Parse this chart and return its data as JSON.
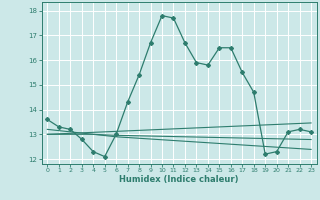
{
  "xlabel": "Humidex (Indice chaleur)",
  "background_color": "#cce8e8",
  "grid_color": "#ffffff",
  "line_color": "#2e7d6e",
  "xlim": [
    -0.5,
    23.5
  ],
  "ylim": [
    11.8,
    18.35
  ],
  "yticks": [
    12,
    13,
    14,
    15,
    16,
    17,
    18
  ],
  "xticks": [
    0,
    1,
    2,
    3,
    4,
    5,
    6,
    7,
    8,
    9,
    10,
    11,
    12,
    13,
    14,
    15,
    16,
    17,
    18,
    19,
    20,
    21,
    22,
    23
  ],
  "main_series": [
    13.6,
    13.3,
    13.2,
    12.8,
    12.3,
    12.1,
    13.0,
    14.3,
    15.4,
    16.7,
    17.8,
    17.7,
    16.7,
    15.9,
    15.8,
    16.5,
    16.5,
    15.5,
    14.7,
    12.2,
    12.3,
    13.1,
    13.2,
    13.1
  ],
  "line1": [
    13.2,
    13.15,
    13.1,
    13.05,
    13.0,
    12.95,
    12.9,
    12.87,
    12.84,
    12.81,
    12.78,
    12.75,
    12.72,
    12.69,
    12.66,
    12.63,
    12.6,
    12.57,
    12.54,
    12.51,
    12.48,
    12.45,
    12.42,
    12.39
  ],
  "line2": [
    13.0,
    13.0,
    13.0,
    13.0,
    13.0,
    12.98,
    12.96,
    12.95,
    12.94,
    12.93,
    12.92,
    12.91,
    12.9,
    12.89,
    12.88,
    12.87,
    12.86,
    12.85,
    12.84,
    12.83,
    12.82,
    12.81,
    12.8,
    12.79
  ],
  "line3": [
    13.0,
    13.02,
    13.04,
    13.06,
    13.08,
    13.1,
    13.12,
    13.14,
    13.16,
    13.18,
    13.2,
    13.22,
    13.24,
    13.26,
    13.28,
    13.3,
    13.32,
    13.34,
    13.36,
    13.38,
    13.4,
    13.42,
    13.44,
    13.46
  ]
}
